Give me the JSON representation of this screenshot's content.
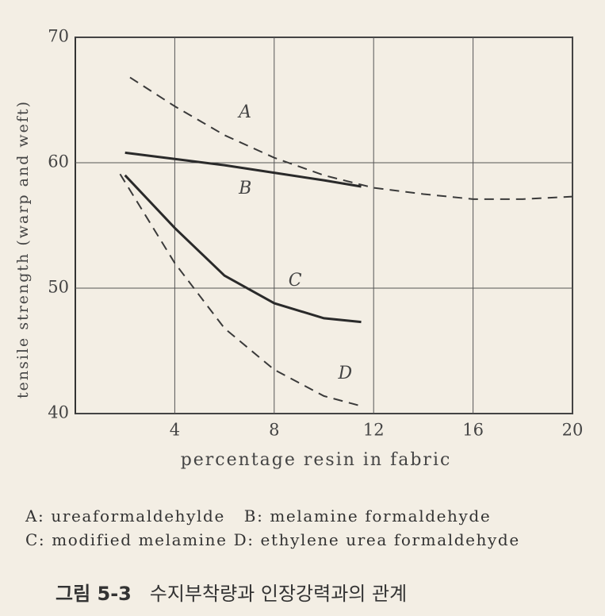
{
  "chart_data": {
    "type": "line",
    "y_label": "tensile strength (warp and weft)",
    "x_label": "percentage resin in fabric",
    "xlim": [
      0,
      20
    ],
    "xticks": [
      4,
      8,
      12,
      16,
      20
    ],
    "ylim": [
      40,
      70
    ],
    "yticks": [
      40,
      50,
      60,
      70
    ],
    "grid": true,
    "series": [
      {
        "name": "A",
        "color": "#3a3a3a",
        "style": "dashed",
        "x": [
          2.2,
          4,
          6,
          8,
          10,
          12,
          14,
          16,
          18,
          20
        ],
        "values": [
          66.8,
          64.5,
          62.2,
          60.4,
          59.0,
          58.0,
          57.5,
          57.1,
          57.1,
          57.3
        ]
      },
      {
        "name": "B",
        "color": "#2a2a2a",
        "style": "solid",
        "x": [
          2,
          4,
          6,
          8,
          10,
          11.5
        ],
        "values": [
          60.8,
          60.3,
          59.8,
          59.2,
          58.6,
          58.1
        ]
      },
      {
        "name": "C",
        "color": "#2a2a2a",
        "style": "solid",
        "x": [
          2,
          4,
          6,
          8,
          10,
          11.5
        ],
        "values": [
          59.0,
          54.8,
          51.0,
          48.8,
          47.6,
          47.3
        ]
      },
      {
        "name": "D",
        "color": "#3a3a3a",
        "style": "dashed",
        "x": [
          1.8,
          4,
          6,
          8,
          10,
          11.5
        ],
        "values": [
          59.1,
          52.0,
          46.8,
          43.5,
          41.4,
          40.6
        ]
      }
    ],
    "legend_text": [
      "A: ureaformaldehylde",
      "B: melamine formaldehyde",
      "C: modified melamine",
      "D: ethylene urea formaldehyde"
    ],
    "caption_number": "그림 5-3",
    "caption_text": "수지부착량과 인장강력과의 관계"
  }
}
